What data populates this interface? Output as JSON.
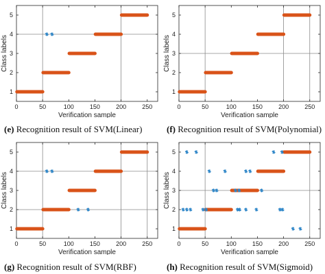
{
  "chart_data": [
    {
      "type": "scatter",
      "xlabel": "Verification sample",
      "ylabel": "Class labels",
      "xlim": [
        0,
        270
      ],
      "ylim": [
        0.5,
        5.5
      ],
      "xticks": [
        "0",
        "50",
        "100",
        "150",
        "200",
        "250"
      ],
      "yticks": [
        "1",
        "2",
        "3",
        "4",
        "5"
      ],
      "caption": {
        "letter": "(e)",
        "text": "Recognition result of SVM(Linear)"
      },
      "series": [
        {
          "color": "#d95319",
          "style": "thick-segments",
          "segments": [
            [
              1,
              50,
              1
            ],
            [
              51,
              100,
              2
            ],
            [
              101,
              150,
              3
            ],
            [
              151,
              200,
              4
            ],
            [
              201,
              250,
              5
            ]
          ]
        },
        {
          "color": "#2e86c8",
          "style": "asterisk",
          "points": [
            [
              58,
              4
            ],
            [
              68,
              4
            ]
          ]
        }
      ],
      "vlines": [
        50,
        200
      ],
      "hlines": [
        4
      ]
    },
    {
      "type": "scatter",
      "xlabel": "Verification sample",
      "ylabel": "Class labels",
      "xlim": [
        0,
        270
      ],
      "ylim": [
        0.5,
        5.5
      ],
      "xticks": [
        "0",
        "50",
        "100",
        "150",
        "200",
        "250"
      ],
      "yticks": [
        "1",
        "2",
        "3",
        "4",
        "5"
      ],
      "caption": {
        "letter": "(f)",
        "text": "Recognition result of SVM(Polynomial)"
      },
      "series": [
        {
          "color": "#d95319",
          "style": "thick-segments",
          "segments": [
            [
              1,
              50,
              1
            ],
            [
              51,
              100,
              2
            ],
            [
              101,
              150,
              3
            ],
            [
              151,
              200,
              4
            ],
            [
              201,
              250,
              5
            ]
          ]
        }
      ],
      "vlines": [
        50,
        200,
        250
      ],
      "hlines": [
        3
      ]
    },
    {
      "type": "scatter",
      "xlabel": "Verification sample",
      "ylabel": "Class labels",
      "xlim": [
        0,
        270
      ],
      "ylim": [
        0.5,
        5.5
      ],
      "xticks": [
        "0",
        "50",
        "100",
        "150",
        "200",
        "250"
      ],
      "yticks": [
        "1",
        "2",
        "3",
        "4",
        "5"
      ],
      "caption": {
        "letter": "(g)",
        "text": "Recognition result of SVM(RBF)"
      },
      "series": [
        {
          "color": "#d95319",
          "style": "thick-segments",
          "segments": [
            [
              1,
              50,
              1
            ],
            [
              51,
              100,
              2
            ],
            [
              101,
              150,
              3
            ],
            [
              151,
              200,
              4
            ],
            [
              201,
              250,
              5
            ]
          ]
        },
        {
          "color": "#2e86c8",
          "style": "asterisk",
          "points": [
            [
              58,
              4
            ],
            [
              68,
              4
            ],
            [
              118,
              2
            ],
            [
              137,
              2
            ]
          ]
        }
      ],
      "vlines": [
        50,
        200,
        250
      ],
      "hlines": [
        4,
        2
      ]
    },
    {
      "type": "scatter",
      "xlabel": "Verification sample",
      "ylabel": "Class labels",
      "xlim": [
        0,
        270
      ],
      "ylim": [
        0.5,
        5.5
      ],
      "xticks": [
        "0",
        "50",
        "100",
        "150",
        "200",
        "250"
      ],
      "yticks": [
        "1",
        "2",
        "3",
        "4",
        "5"
      ],
      "caption": {
        "letter": "(h)",
        "text": "Recognition result of SVM(Sigmoid)"
      },
      "series": [
        {
          "color": "#d95319",
          "style": "thick-segments",
          "segments": [
            [
              1,
              50,
              1
            ],
            [
              51,
              100,
              2
            ],
            [
              101,
              150,
              3
            ],
            [
              151,
              200,
              4
            ],
            [
              201,
              250,
              5
            ]
          ]
        },
        {
          "color": "#2e86c8",
          "style": "asterisk",
          "points": [
            [
              15,
              5
            ],
            [
              33,
              5
            ],
            [
              181,
              5
            ],
            [
              197,
              5
            ],
            [
              58,
              4
            ],
            [
              88,
              4
            ],
            [
              128,
              4
            ],
            [
              136,
              4
            ],
            [
              66,
              3
            ],
            [
              72,
              3
            ],
            [
              108,
              3
            ],
            [
              115,
              3
            ],
            [
              158,
              3
            ],
            [
              8,
              2
            ],
            [
              15,
              2
            ],
            [
              22,
              2
            ],
            [
              46,
              2
            ],
            [
              52,
              2
            ],
            [
              112,
              2
            ],
            [
              116,
              2
            ],
            [
              128,
              2
            ],
            [
              148,
              2
            ],
            [
              193,
              2
            ],
            [
              198,
              2
            ],
            [
              218,
              1
            ],
            [
              232,
              1
            ]
          ]
        }
      ],
      "vlines": [
        50,
        250
      ],
      "hlines": [
        3
      ]
    }
  ]
}
